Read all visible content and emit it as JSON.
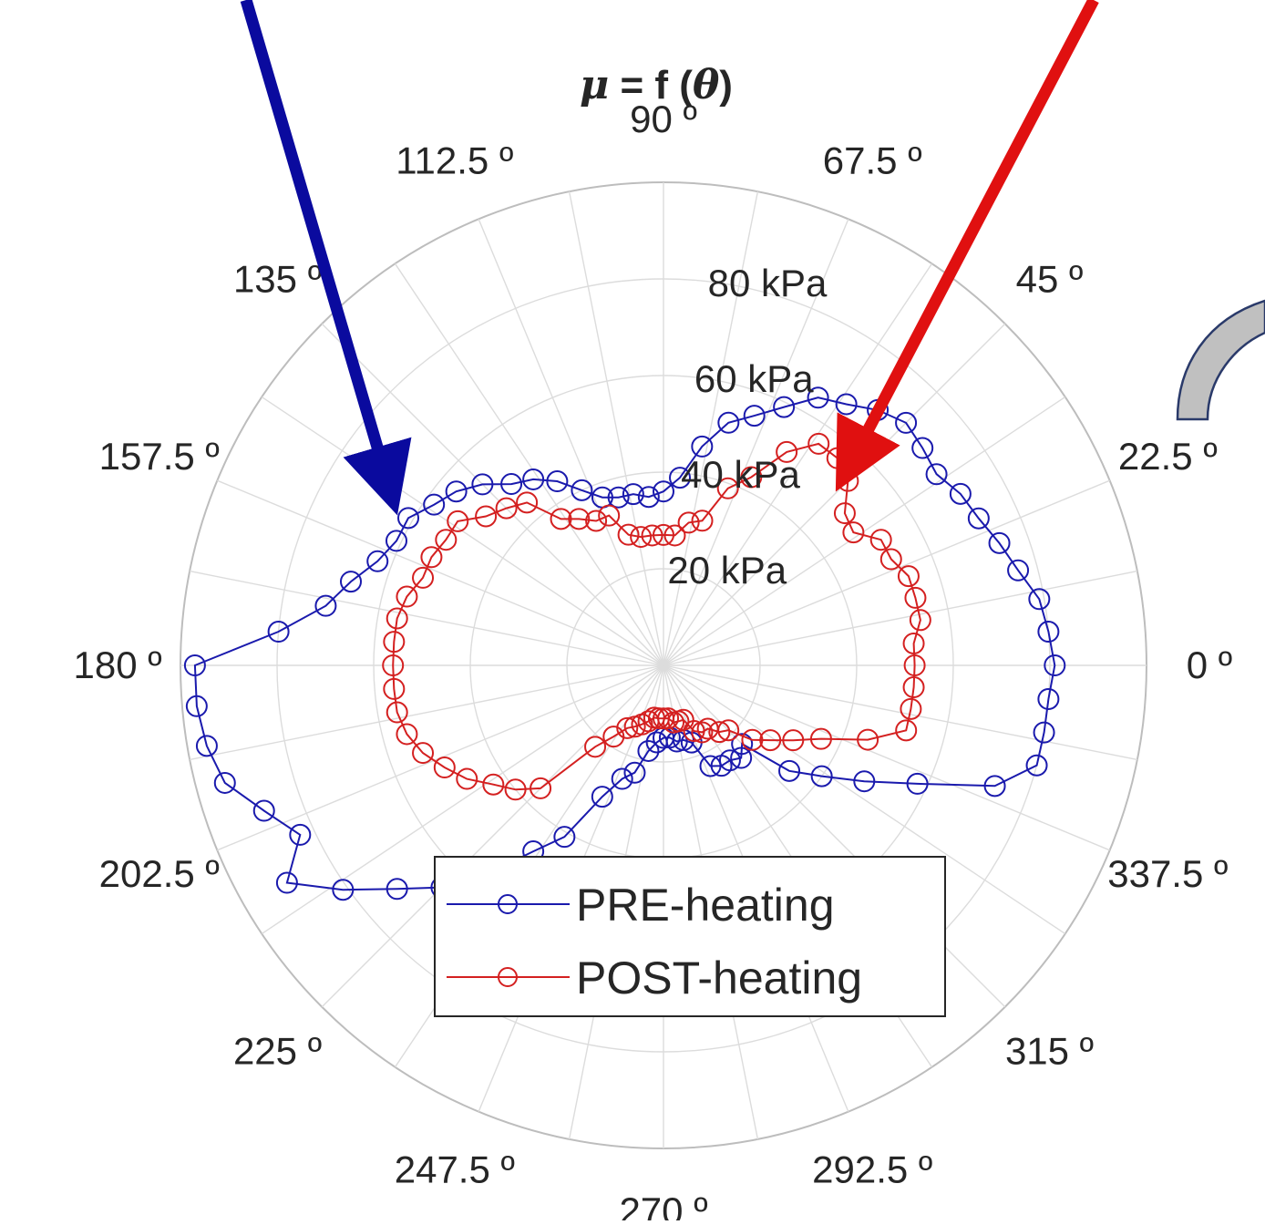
{
  "chart_data": {
    "type": "polar-line",
    "title_parts": {
      "symbol": "μ",
      "middle": " = f (",
      "variable": "θ",
      "end": ")"
    },
    "angle_ticks": [
      {
        "deg": 0,
        "label": "0 º"
      },
      {
        "deg": 22.5,
        "label": "22.5 º"
      },
      {
        "deg": 45,
        "label": "45 º"
      },
      {
        "deg": 67.5,
        "label": "67.5 º"
      },
      {
        "deg": 90,
        "label": "90 º"
      },
      {
        "deg": 112.5,
        "label": "112.5 º"
      },
      {
        "deg": 135,
        "label": "135 º"
      },
      {
        "deg": 157.5,
        "label": "157.5 º"
      },
      {
        "deg": 180,
        "label": "180 º"
      },
      {
        "deg": 202.5,
        "label": "202.5 º"
      },
      {
        "deg": 225,
        "label": "225 º"
      },
      {
        "deg": 247.5,
        "label": "247.5 º"
      },
      {
        "deg": 270,
        "label": "270 º"
      },
      {
        "deg": 292.5,
        "label": "292.5 º"
      },
      {
        "deg": 315,
        "label": "315 º"
      },
      {
        "deg": 337.5,
        "label": "337.5 º"
      }
    ],
    "radial_ticks": [
      {
        "value": 20,
        "label": "20 kPa"
      },
      {
        "value": 40,
        "label": "40 kPa"
      },
      {
        "value": 60,
        "label": "60 kPa"
      },
      {
        "value": 80,
        "label": "80 kPa"
      }
    ],
    "rlim": [
      0,
      100
    ],
    "angular_grid_step_deg": 11.25,
    "grid": true,
    "legend_position": "bottom-center",
    "colors": {
      "pre": "#1a1aad",
      "post": "#d42020",
      "grid": "#dcdcdc",
      "arrow_blue": "#0a0a9e",
      "arrow_red": "#e01010"
    },
    "series": [
      {
        "name": "PRE-heating",
        "color": "#1a1aad",
        "points": [
          [
            0,
            81
          ],
          [
            5,
            80
          ],
          [
            10,
            79
          ],
          [
            15,
            76
          ],
          [
            20,
            74
          ],
          [
            25,
            72
          ],
          [
            30,
            71
          ],
          [
            35,
            69
          ],
          [
            40,
            70
          ],
          [
            45,
            71
          ],
          [
            50,
            69
          ],
          [
            55,
            66
          ],
          [
            60,
            64
          ],
          [
            65,
            59
          ],
          [
            70,
            55
          ],
          [
            75,
            52
          ],
          [
            80,
            46
          ],
          [
            85,
            39
          ],
          [
            90,
            36
          ],
          [
            95,
            35
          ],
          [
            100,
            36
          ],
          [
            105,
            36
          ],
          [
            110,
            37
          ],
          [
            115,
            40
          ],
          [
            120,
            44
          ],
          [
            125,
            47
          ],
          [
            130,
            49
          ],
          [
            135,
            53
          ],
          [
            140,
            56
          ],
          [
            145,
            58
          ],
          [
            150,
            61
          ],
          [
            155,
            61
          ],
          [
            160,
            63
          ],
          [
            165,
            67
          ],
          [
            170,
            71
          ],
          [
            175,
            80
          ],
          [
            180,
            97
          ],
          [
            185,
            97
          ],
          [
            190,
            96
          ],
          [
            195,
            94
          ],
          [
            200,
            88
          ],
          [
            205,
            83
          ],
          [
            210,
            90
          ],
          [
            215,
            81
          ],
          [
            220,
            72
          ],
          [
            225,
            65
          ],
          [
            230,
            56
          ],
          [
            235,
            47
          ],
          [
            240,
            41
          ],
          [
            245,
            30
          ],
          [
            250,
            25
          ],
          [
            255,
            23
          ],
          [
            260,
            18
          ],
          [
            265,
            16
          ],
          [
            270,
            15
          ],
          [
            275,
            15
          ],
          [
            280,
            16
          ],
          [
            285,
            16
          ],
          [
            290,
            17
          ],
          [
            295,
            23
          ],
          [
            300,
            24
          ],
          [
            305,
            24
          ],
          [
            310,
            25
          ],
          [
            315,
            23
          ],
          [
            320,
            34
          ],
          [
            325,
            40
          ],
          [
            330,
            48
          ],
          [
            335,
            58
          ],
          [
            340,
            73
          ],
          [
            345,
            80
          ],
          [
            350,
            80
          ],
          [
            355,
            80
          ]
        ]
      },
      {
        "name": "POST-heating",
        "color": "#d42020",
        "points": [
          [
            0,
            52
          ],
          [
            5,
            52
          ],
          [
            10,
            54
          ],
          [
            15,
            54
          ],
          [
            20,
            54
          ],
          [
            25,
            52
          ],
          [
            30,
            52
          ],
          [
            35,
            48
          ],
          [
            40,
            49
          ],
          [
            45,
            54
          ],
          [
            50,
            56
          ],
          [
            55,
            56
          ],
          [
            60,
            51
          ],
          [
            65,
            43
          ],
          [
            70,
            39
          ],
          [
            75,
            31
          ],
          [
            80,
            30
          ],
          [
            85,
            27
          ],
          [
            90,
            27
          ],
          [
            95,
            27
          ],
          [
            100,
            27
          ],
          [
            105,
            28
          ],
          [
            110,
            33
          ],
          [
            115,
            33
          ],
          [
            120,
            35
          ],
          [
            125,
            37
          ],
          [
            130,
            44
          ],
          [
            135,
            46
          ],
          [
            140,
            48
          ],
          [
            145,
            52
          ],
          [
            150,
            52
          ],
          [
            155,
            53
          ],
          [
            160,
            53
          ],
          [
            165,
            55
          ],
          [
            170,
            56
          ],
          [
            175,
            56
          ],
          [
            180,
            56
          ],
          [
            185,
            56
          ],
          [
            190,
            56
          ],
          [
            195,
            55
          ],
          [
            200,
            53
          ],
          [
            205,
            50
          ],
          [
            210,
            47
          ],
          [
            215,
            43
          ],
          [
            220,
            40
          ],
          [
            225,
            36
          ],
          [
            230,
            22
          ],
          [
            235,
            18
          ],
          [
            240,
            15
          ],
          [
            245,
            14
          ],
          [
            250,
            13
          ],
          [
            255,
            12
          ],
          [
            260,
            11
          ],
          [
            265,
            11
          ],
          [
            270,
            11
          ],
          [
            275,
            11
          ],
          [
            280,
            12
          ],
          [
            285,
            12
          ],
          [
            290,
            12
          ],
          [
            295,
            15
          ],
          [
            300,
            16
          ],
          [
            305,
            16
          ],
          [
            310,
            18
          ],
          [
            315,
            19
          ],
          [
            320,
            24
          ],
          [
            325,
            27
          ],
          [
            330,
            31
          ],
          [
            335,
            36
          ],
          [
            340,
            45
          ],
          [
            345,
            52
          ],
          [
            350,
            52
          ],
          [
            355,
            52
          ]
        ]
      }
    ]
  }
}
